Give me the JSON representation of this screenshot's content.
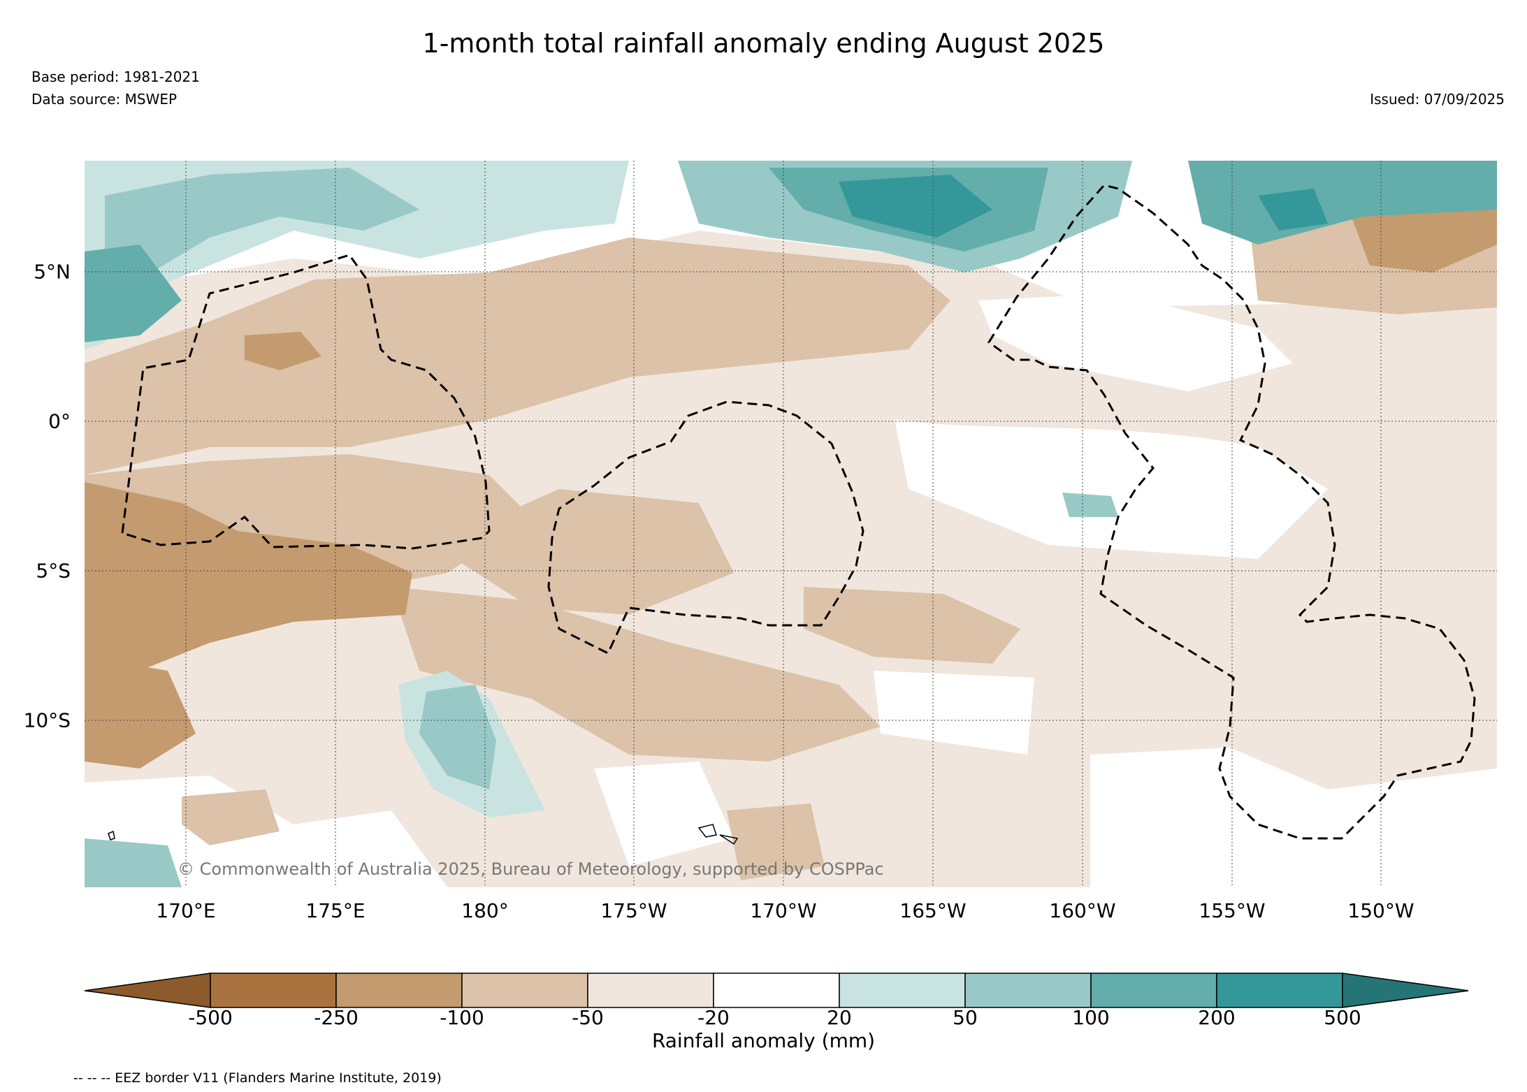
{
  "title": "1-month total rainfall anomaly ending August 2025",
  "base_period": "Base period: 1981-2021",
  "data_source": "Data source: MSWEP",
  "issued": "Issued: 07/09/2025",
  "copyright": "© Commonwealth of Australia 2025, Bureau of Meteorology, supported by COSPPac",
  "footnote": "-- -- -- EEZ border V11 (Flanders Marine Institute, 2019)",
  "lon_labels": [
    "170°E",
    "175°E",
    "180°",
    "175°W",
    "170°W",
    "165°W",
    "160°W",
    "155°W",
    "150°W"
  ],
  "lat_labels": [
    "5°N",
    "0°",
    "5°S",
    "10°S"
  ],
  "colorbar": {
    "title": "Rainfall anomaly (mm)",
    "ticks": [
      "-500",
      "-250",
      "-100",
      "-50",
      "-20",
      "20",
      "50",
      "100",
      "200",
      "500"
    ],
    "colors": [
      "#8c5a2b",
      "#a8733f",
      "#c49a6f",
      "#dbc2a8",
      "#f0e6dd",
      "#ffffff",
      "#c9e3e1",
      "#98c9c7",
      "#63adab",
      "#34989a",
      "#267576"
    ]
  },
  "palette": {
    "grid": "#444444",
    "eez": "#000000",
    "map_bg": "#f0e6dd"
  }
}
